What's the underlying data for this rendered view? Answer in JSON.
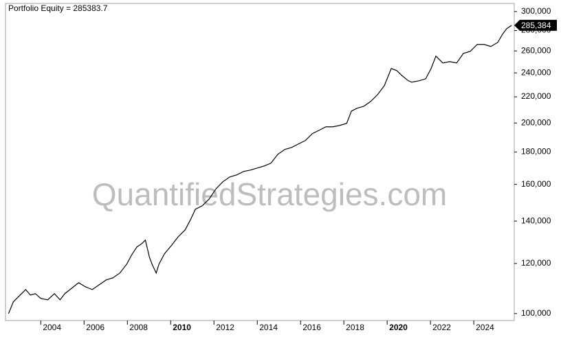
{
  "chart_data": {
    "type": "line",
    "title": "Portfolio Equity = 285383.7",
    "watermark": "QuantifiedStrategies.com",
    "log_scale": true,
    "grid": false,
    "color": "#000000",
    "xlim": [
      2002.37,
      2025.87
    ],
    "xticks": [
      2004,
      2006,
      2008,
      2010,
      2012,
      2014,
      2016,
      2018,
      2020,
      2022,
      2024
    ],
    "ylim": [
      97500,
      309000
    ],
    "yticks": [
      {
        "value": 100000,
        "label": "100,000"
      },
      {
        "value": 120000,
        "label": "120,000"
      },
      {
        "value": 140000,
        "label": "140,000"
      },
      {
        "value": 160000,
        "label": "160,000"
      },
      {
        "value": 180000,
        "label": "180,000"
      },
      {
        "value": 200000,
        "label": "200,000"
      },
      {
        "value": 220000,
        "label": "220,000"
      },
      {
        "value": 240000,
        "label": "240,000"
      },
      {
        "value": 260000,
        "label": "260,000"
      },
      {
        "value": 280000,
        "label": "280,000"
      },
      {
        "value": 300000,
        "label": "300,000"
      }
    ],
    "x": [
      2002.51,
      2002.73,
      2003.05,
      2003.3,
      2003.52,
      2003.75,
      2004.0,
      2004.32,
      2004.63,
      2004.89,
      2005.11,
      2005.43,
      2005.75,
      2006.06,
      2006.38,
      2006.7,
      2007.02,
      2007.33,
      2007.65,
      2007.97,
      2008.19,
      2008.44,
      2008.67,
      2008.83,
      2009.02,
      2009.14,
      2009.33,
      2009.46,
      2009.71,
      2010.03,
      2010.35,
      2010.67,
      2010.92,
      2011.14,
      2011.46,
      2011.78,
      2012.1,
      2012.41,
      2012.73,
      2013.05,
      2013.37,
      2013.68,
      2014.0,
      2014.32,
      2014.63,
      2014.95,
      2015.27,
      2015.59,
      2015.9,
      2016.22,
      2016.54,
      2016.86,
      2017.17,
      2017.49,
      2017.81,
      2018.13,
      2018.35,
      2018.6,
      2018.92,
      2019.24,
      2019.56,
      2019.87,
      2020.19,
      2020.44,
      2020.67,
      2020.98,
      2021.14,
      2021.46,
      2021.78,
      2022.03,
      2022.25,
      2022.57,
      2022.89,
      2023.21,
      2023.52,
      2023.84,
      2024.16,
      2024.48,
      2024.79,
      2025.11,
      2025.33,
      2025.52,
      2025.75
    ],
    "series": [
      {
        "name": "Portfolio Equity",
        "color": "#000000",
        "values": [
          100000,
          104340,
          106980,
          109130,
          106980,
          107510,
          105650,
          105120,
          107510,
          105120,
          107510,
          109680,
          111890,
          110230,
          109130,
          111060,
          113020,
          113870,
          115870,
          119700,
          123650,
          127410,
          129010,
          130630,
          122730,
          119700,
          115870,
          119700,
          124270,
          128050,
          132270,
          135620,
          140790,
          146170,
          148010,
          151750,
          157540,
          161520,
          164380,
          165610,
          167700,
          168540,
          169800,
          171080,
          172800,
          178500,
          181650,
          183020,
          185320,
          187640,
          192390,
          194810,
          197260,
          197260,
          198250,
          199740,
          208900,
          211000,
          212590,
          216340,
          221810,
          229130,
          243900,
          242080,
          237880,
          233170,
          232010,
          233170,
          234930,
          243900,
          255100,
          248820,
          250070,
          248820,
          257670,
          259610,
          266180,
          266180,
          264190,
          268180,
          276330,
          281900,
          285383.7
        ],
        "value_labels": [
          null,
          null,
          null,
          null,
          null,
          null,
          null,
          null,
          null,
          null,
          null,
          null,
          null,
          null,
          null,
          null,
          null,
          null,
          null,
          null,
          null,
          null,
          null,
          null,
          null,
          null,
          null,
          null,
          null,
          null,
          null,
          null,
          null,
          null,
          null,
          null,
          null,
          null,
          null,
          null,
          null,
          null,
          null,
          null,
          null,
          null,
          null,
          null,
          null,
          null,
          null,
          null,
          null,
          null,
          null,
          null,
          null,
          null,
          null,
          null,
          null,
          null,
          null,
          null,
          null,
          null,
          null,
          null,
          null,
          null,
          null,
          null,
          null,
          null,
          null,
          null,
          null,
          null,
          null,
          null,
          null,
          null,
          "285,384"
        ]
      }
    ]
  }
}
